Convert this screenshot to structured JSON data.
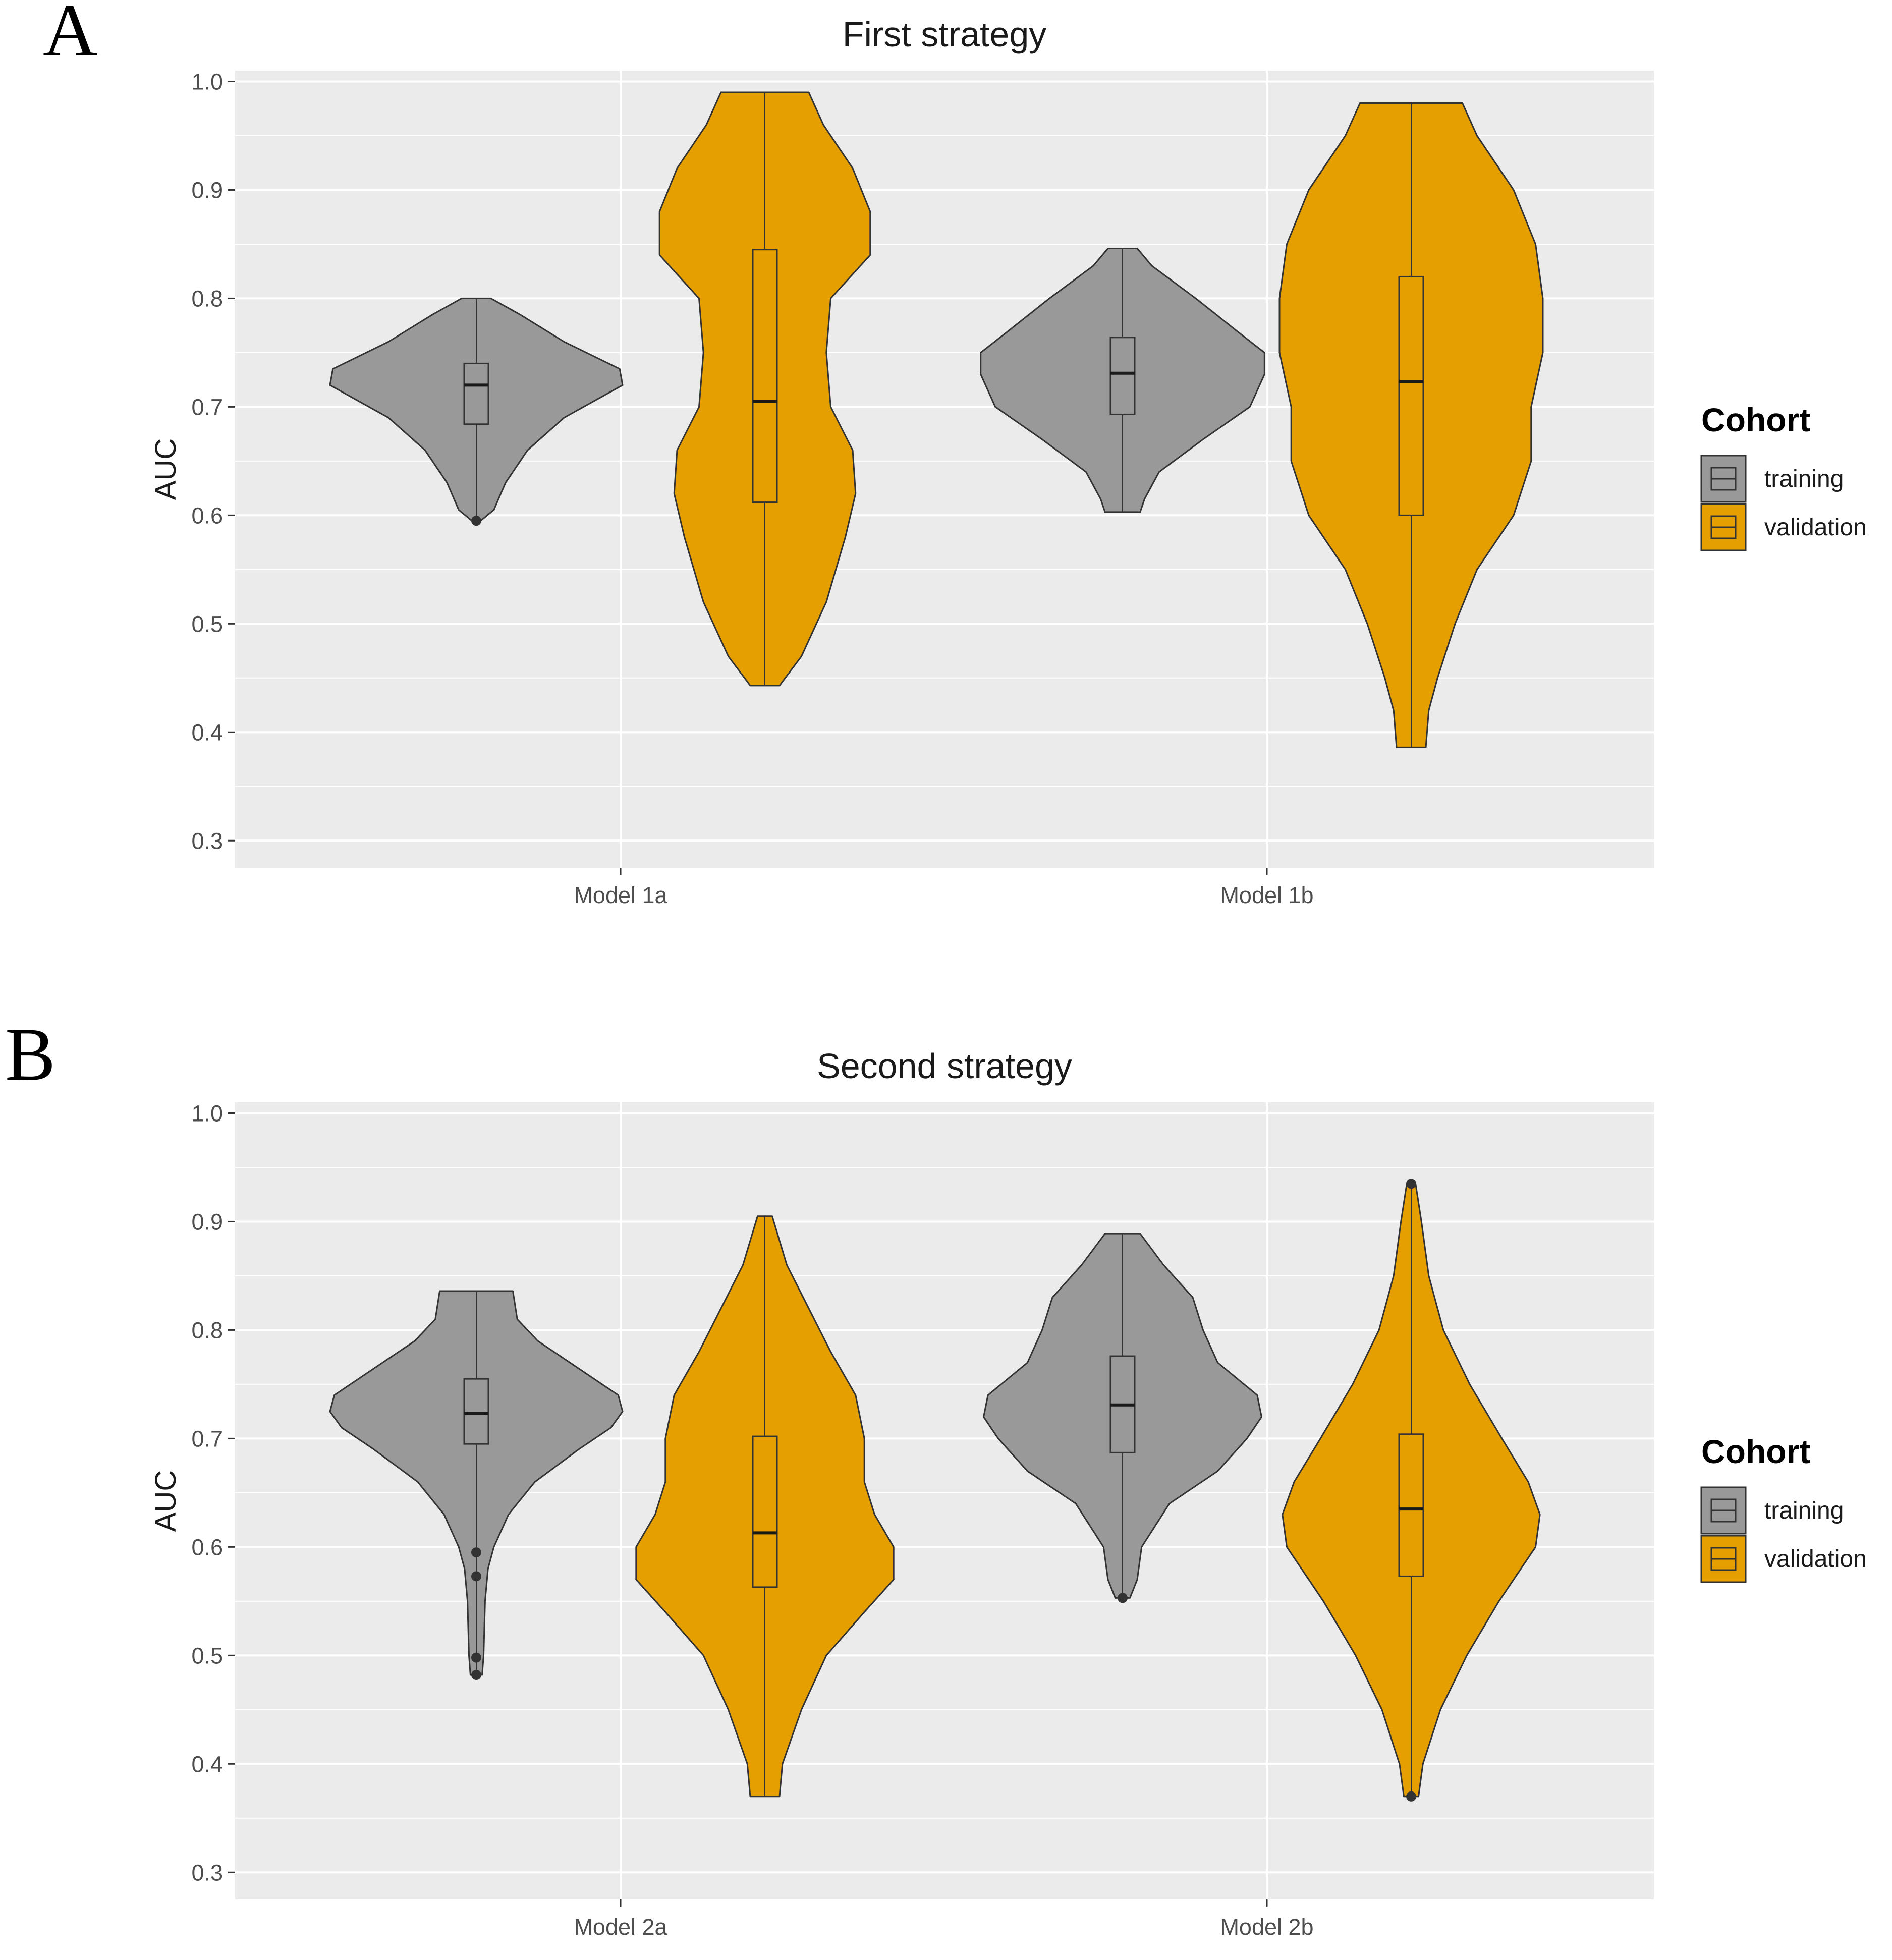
{
  "colors": {
    "training": "#999999",
    "validation": "#E69F00",
    "panel_bg": "#EBEBEB",
    "grid": "#FFFFFF",
    "outline": "#333333"
  },
  "chart_data": [
    {
      "type": "violin",
      "panel_label": "A",
      "title": "First strategy",
      "xlabel": "",
      "ylabel": "AUC",
      "ylim": [
        0.275,
        1.01
      ],
      "yticks": [
        0.3,
        0.4,
        0.5,
        0.6,
        0.7,
        0.8,
        0.9,
        1.0
      ],
      "ytick_labels": [
        "0.3",
        "0.4",
        "0.5",
        "0.6",
        "0.7",
        "0.8",
        "0.9",
        "1.0"
      ],
      "grid": true,
      "categories": [
        "Model 1a",
        "Model 1b"
      ],
      "legend": {
        "title": "Cohort",
        "position": "right",
        "items": [
          "training",
          "validation"
        ]
      },
      "series": [
        {
          "name": "training",
          "color": "#999999",
          "violins": [
            {
              "category": "Model 1a",
              "min": 0.595,
              "max": 0.8,
              "q1": 0.684,
              "median": 0.72,
              "q3": 0.74,
              "outliers": [
                0.595
              ],
              "density": [
                [
                  0.595,
                  0.03
                ],
                [
                  0.605,
                  0.12
                ],
                [
                  0.63,
                  0.2
                ],
                [
                  0.66,
                  0.35
                ],
                [
                  0.69,
                  0.6
                ],
                [
                  0.72,
                  1.0
                ],
                [
                  0.735,
                  0.98
                ],
                [
                  0.76,
                  0.6
                ],
                [
                  0.785,
                  0.3
                ],
                [
                  0.8,
                  0.1
                ]
              ]
            },
            {
              "category": "Model 1b",
              "min": 0.603,
              "max": 0.846,
              "q1": 0.693,
              "median": 0.731,
              "q3": 0.764,
              "outliers": [],
              "density": [
                [
                  0.603,
                  0.12
                ],
                [
                  0.615,
                  0.15
                ],
                [
                  0.64,
                  0.25
                ],
                [
                  0.67,
                  0.55
                ],
                [
                  0.7,
                  0.87
                ],
                [
                  0.73,
                  0.97
                ],
                [
                  0.75,
                  0.97
                ],
                [
                  0.77,
                  0.78
                ],
                [
                  0.8,
                  0.5
                ],
                [
                  0.83,
                  0.2
                ],
                [
                  0.846,
                  0.1
                ]
              ]
            }
          ]
        },
        {
          "name": "validation",
          "color": "#E69F00",
          "violins": [
            {
              "category": "Model 1a",
              "min": 0.443,
              "max": 0.99,
              "q1": 0.612,
              "median": 0.705,
              "q3": 0.845,
              "outliers": [],
              "density": [
                [
                  0.443,
                  0.1
                ],
                [
                  0.47,
                  0.25
                ],
                [
                  0.52,
                  0.42
                ],
                [
                  0.58,
                  0.55
                ],
                [
                  0.62,
                  0.62
                ],
                [
                  0.66,
                  0.6
                ],
                [
                  0.7,
                  0.45
                ],
                [
                  0.75,
                  0.42
                ],
                [
                  0.8,
                  0.45
                ],
                [
                  0.84,
                  0.72
                ],
                [
                  0.88,
                  0.72
                ],
                [
                  0.92,
                  0.6
                ],
                [
                  0.96,
                  0.4
                ],
                [
                  0.99,
                  0.3
                ]
              ]
            },
            {
              "category": "Model 1b",
              "min": 0.386,
              "max": 0.98,
              "q1": 0.6,
              "median": 0.723,
              "q3": 0.82,
              "outliers": [],
              "density": [
                [
                  0.386,
                  0.1
                ],
                [
                  0.42,
                  0.12
                ],
                [
                  0.45,
                  0.18
                ],
                [
                  0.5,
                  0.3
                ],
                [
                  0.55,
                  0.45
                ],
                [
                  0.6,
                  0.7
                ],
                [
                  0.65,
                  0.82
                ],
                [
                  0.7,
                  0.82
                ],
                [
                  0.75,
                  0.9
                ],
                [
                  0.8,
                  0.9
                ],
                [
                  0.85,
                  0.85
                ],
                [
                  0.9,
                  0.7
                ],
                [
                  0.95,
                  0.45
                ],
                [
                  0.98,
                  0.35
                ]
              ]
            }
          ]
        }
      ]
    },
    {
      "type": "violin",
      "panel_label": "B",
      "title": "Second strategy",
      "xlabel": "",
      "ylabel": "AUC",
      "ylim": [
        0.275,
        1.01
      ],
      "yticks": [
        0.3,
        0.4,
        0.5,
        0.6,
        0.7,
        0.8,
        0.9,
        1.0
      ],
      "ytick_labels": [
        "0.3",
        "0.4",
        "0.5",
        "0.6",
        "0.7",
        "0.8",
        "0.9",
        "1.0"
      ],
      "grid": true,
      "categories": [
        "Model 2a",
        "Model 2b"
      ],
      "legend": {
        "title": "Cohort",
        "position": "right",
        "items": [
          "training",
          "validation"
        ]
      },
      "series": [
        {
          "name": "training",
          "color": "#999999",
          "violins": [
            {
              "category": "Model 2a",
              "min": 0.482,
              "max": 0.836,
              "q1": 0.695,
              "median": 0.723,
              "q3": 0.755,
              "outliers": [
                0.595,
                0.573,
                0.498,
                0.482
              ],
              "density": [
                [
                  0.482,
                  0.04
                ],
                [
                  0.5,
                  0.05
                ],
                [
                  0.55,
                  0.06
                ],
                [
                  0.58,
                  0.08
                ],
                [
                  0.6,
                  0.12
                ],
                [
                  0.63,
                  0.22
                ],
                [
                  0.66,
                  0.4
                ],
                [
                  0.69,
                  0.7
                ],
                [
                  0.71,
                  0.92
                ],
                [
                  0.725,
                  1.0
                ],
                [
                  0.74,
                  0.97
                ],
                [
                  0.76,
                  0.75
                ],
                [
                  0.79,
                  0.42
                ],
                [
                  0.81,
                  0.28
                ],
                [
                  0.836,
                  0.25
                ]
              ]
            },
            {
              "category": "Model 2b",
              "min": 0.553,
              "max": 0.889,
              "q1": 0.687,
              "median": 0.731,
              "q3": 0.776,
              "outliers": [
                0.553
              ],
              "density": [
                [
                  0.553,
                  0.05
                ],
                [
                  0.57,
                  0.1
                ],
                [
                  0.6,
                  0.13
                ],
                [
                  0.64,
                  0.32
                ],
                [
                  0.67,
                  0.65
                ],
                [
                  0.7,
                  0.85
                ],
                [
                  0.72,
                  0.95
                ],
                [
                  0.74,
                  0.92
                ],
                [
                  0.77,
                  0.65
                ],
                [
                  0.8,
                  0.55
                ],
                [
                  0.83,
                  0.48
                ],
                [
                  0.86,
                  0.28
                ],
                [
                  0.889,
                  0.12
                ]
              ]
            }
          ]
        },
        {
          "name": "validation",
          "color": "#E69F00",
          "violins": [
            {
              "category": "Model 2a",
              "min": 0.37,
              "max": 0.905,
              "q1": 0.563,
              "median": 0.613,
              "q3": 0.702,
              "outliers": [],
              "density": [
                [
                  0.37,
                  0.1
                ],
                [
                  0.4,
                  0.12
                ],
                [
                  0.45,
                  0.25
                ],
                [
                  0.5,
                  0.42
                ],
                [
                  0.54,
                  0.68
                ],
                [
                  0.57,
                  0.88
                ],
                [
                  0.6,
                  0.88
                ],
                [
                  0.63,
                  0.75
                ],
                [
                  0.66,
                  0.68
                ],
                [
                  0.7,
                  0.68
                ],
                [
                  0.74,
                  0.62
                ],
                [
                  0.78,
                  0.45
                ],
                [
                  0.82,
                  0.3
                ],
                [
                  0.86,
                  0.15
                ],
                [
                  0.905,
                  0.05
                ]
              ]
            },
            {
              "category": "Model 2b",
              "min": 0.37,
              "max": 0.935,
              "q1": 0.573,
              "median": 0.635,
              "q3": 0.704,
              "outliers": [
                0.935,
                0.37
              ],
              "density": [
                [
                  0.37,
                  0.05
                ],
                [
                  0.4,
                  0.08
                ],
                [
                  0.45,
                  0.2
                ],
                [
                  0.5,
                  0.38
                ],
                [
                  0.55,
                  0.6
                ],
                [
                  0.6,
                  0.85
                ],
                [
                  0.63,
                  0.88
                ],
                [
                  0.66,
                  0.8
                ],
                [
                  0.7,
                  0.62
                ],
                [
                  0.75,
                  0.4
                ],
                [
                  0.8,
                  0.22
                ],
                [
                  0.85,
                  0.12
                ],
                [
                  0.9,
                  0.07
                ],
                [
                  0.935,
                  0.03
                ]
              ]
            }
          ]
        }
      ]
    }
  ]
}
